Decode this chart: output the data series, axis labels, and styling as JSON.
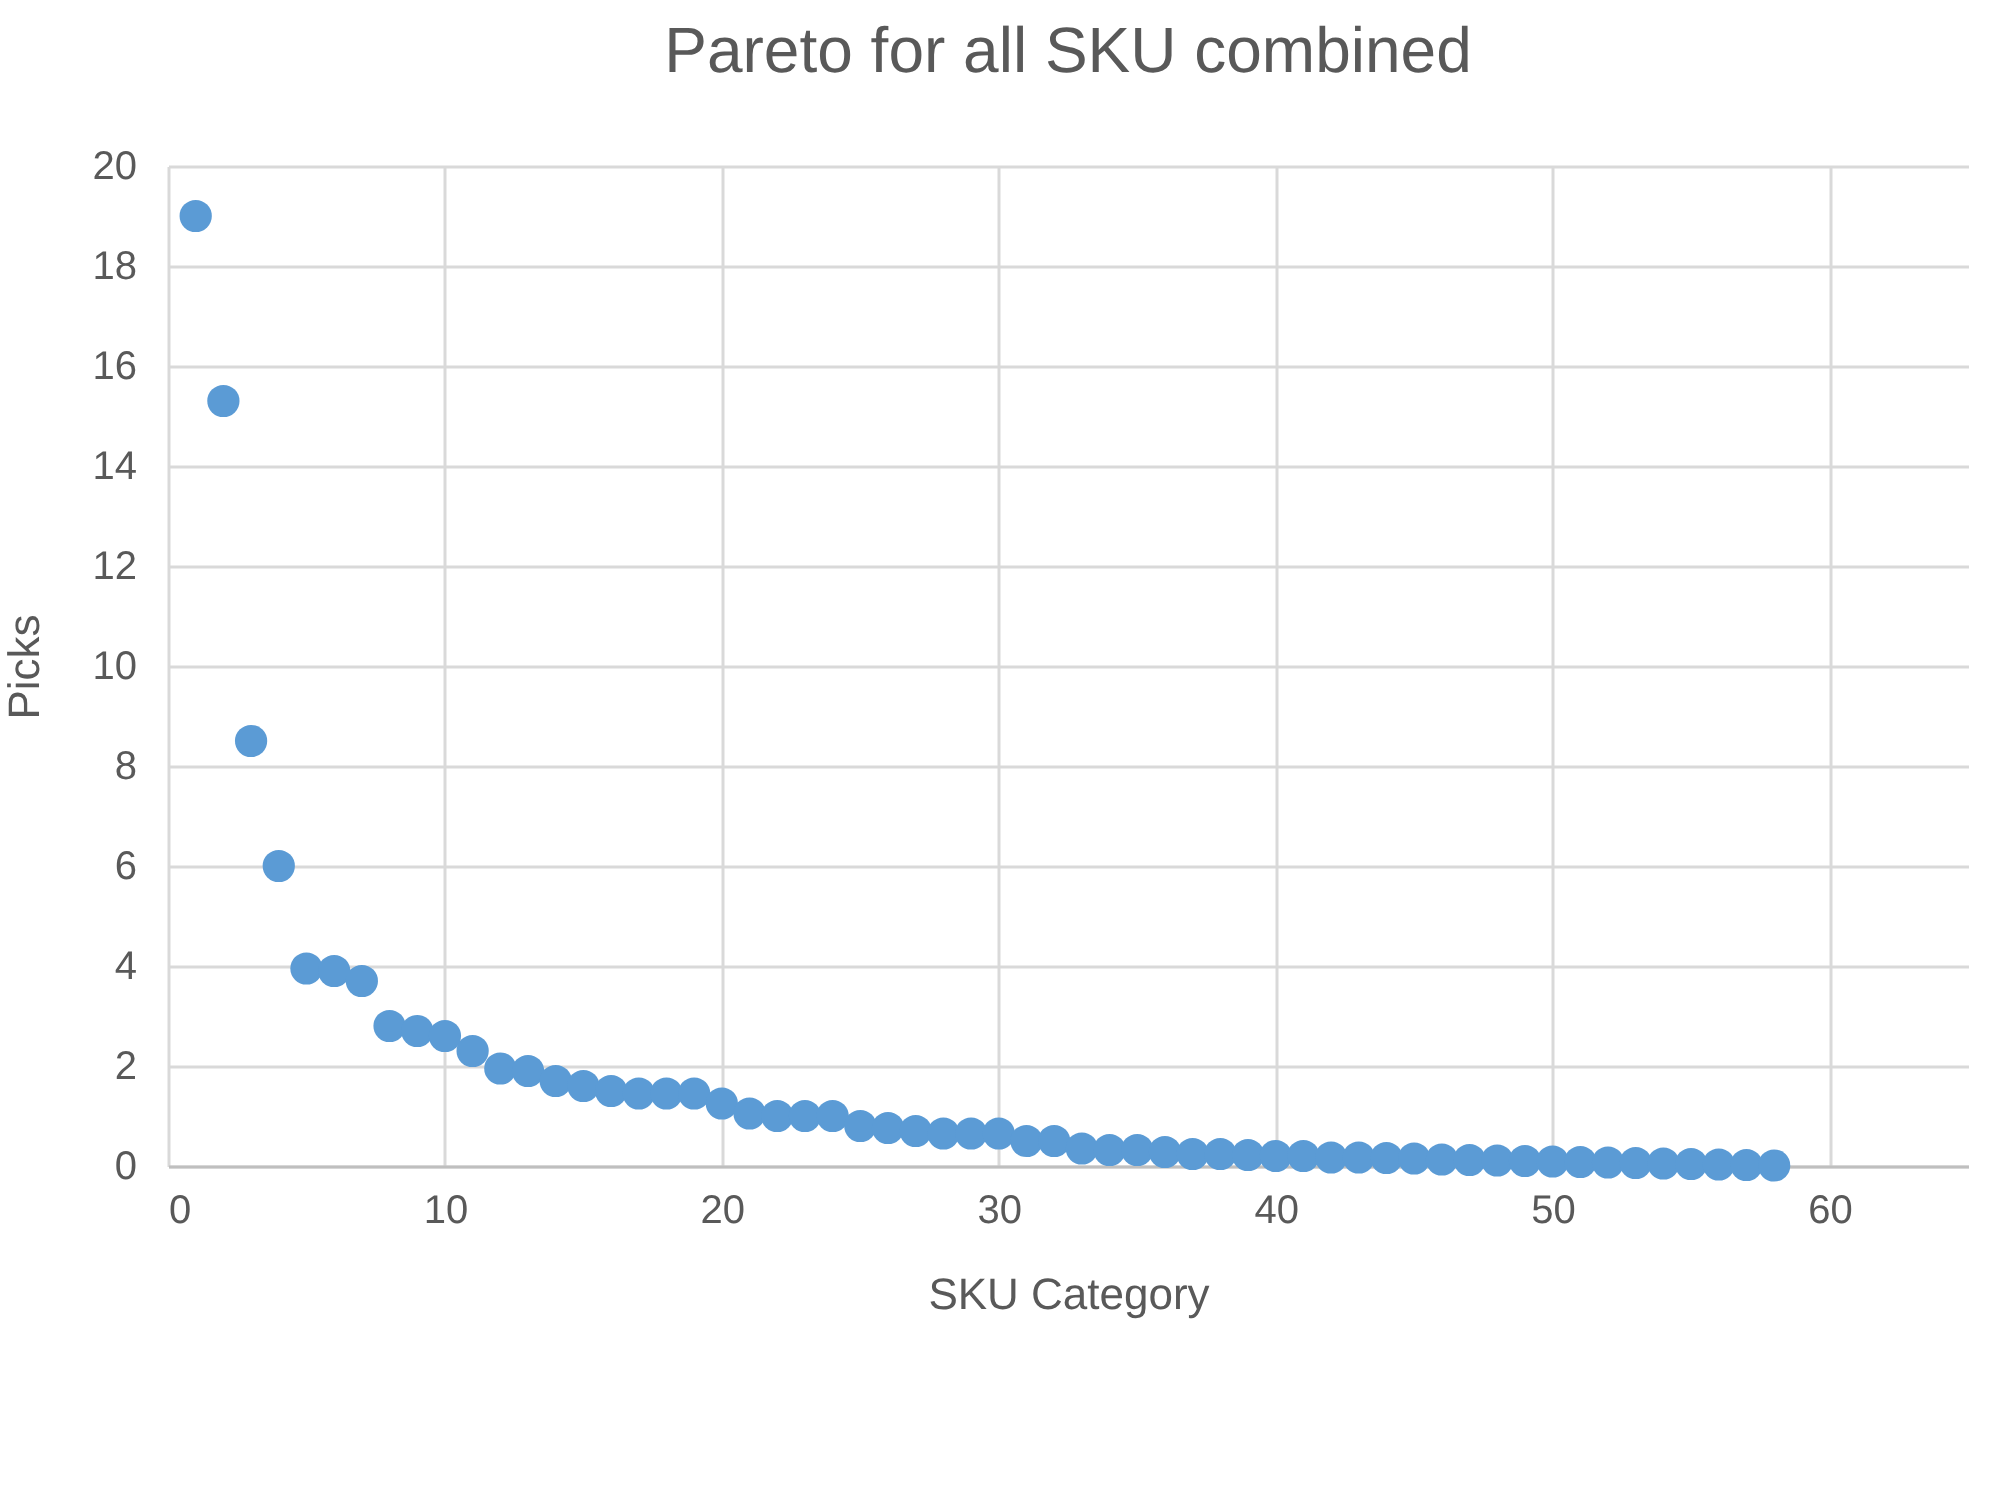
{
  "chart_data": {
    "type": "scatter",
    "title": "Pareto for all SKU combined",
    "xlabel": "SKU Category",
    "ylabel": "Picks",
    "x": [
      1,
      2,
      3,
      4,
      5,
      6,
      7,
      8,
      9,
      10,
      11,
      12,
      13,
      14,
      15,
      16,
      17,
      18,
      19,
      20,
      21,
      22,
      23,
      24,
      25,
      26,
      27,
      28,
      29,
      30,
      31,
      32,
      33,
      34,
      35,
      36,
      37,
      38,
      39,
      40,
      41,
      42,
      43,
      44,
      45,
      46,
      47,
      48,
      49,
      50,
      51,
      52,
      53,
      54,
      55,
      56,
      57,
      58
    ],
    "series": [
      {
        "color": "#5b9bd5",
        "values": [
          19.0,
          15.3,
          8.5,
          6.0,
          3.95,
          3.9,
          3.7,
          2.8,
          2.7,
          2.6,
          2.3,
          1.95,
          1.9,
          1.7,
          1.6,
          1.5,
          1.45,
          1.45,
          1.45,
          1.25,
          1.05,
          1.0,
          1.0,
          1.0,
          0.8,
          0.76,
          0.7,
          0.65,
          0.65,
          0.65,
          0.5,
          0.5,
          0.35,
          0.32,
          0.32,
          0.28,
          0.24,
          0.24,
          0.22,
          0.2,
          0.2,
          0.17,
          0.17,
          0.16,
          0.15,
          0.13,
          0.12,
          0.11,
          0.1,
          0.09,
          0.08,
          0.07,
          0.06,
          0.05,
          0.04,
          0.03,
          0.02,
          0.01
        ]
      }
    ],
    "xlim": [
      0,
      65
    ],
    "xticks": [
      0,
      10,
      20,
      30,
      40,
      50,
      60
    ],
    "ylim": [
      0,
      20
    ],
    "yticks": [
      0,
      2,
      4,
      6,
      8,
      10,
      12,
      14,
      16,
      18,
      20
    ],
    "grid": true,
    "marker": "circle"
  }
}
